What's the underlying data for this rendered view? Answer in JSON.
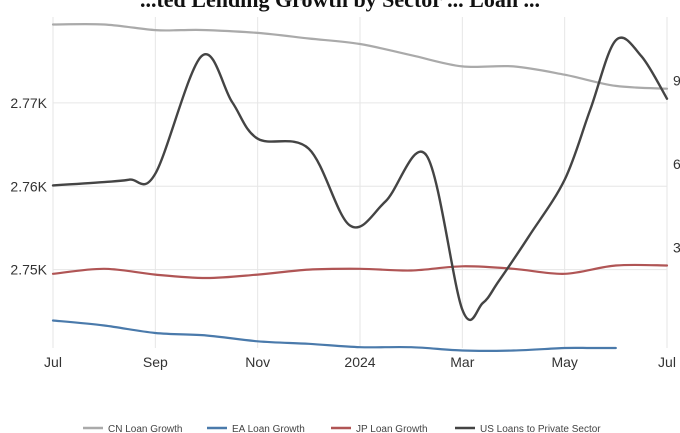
{
  "chart_data": {
    "type": "line",
    "title": "...ted Lending Growth by Sector ... Loan ...",
    "x_ticks": [
      "Jul",
      "Sep",
      "Nov",
      "2024",
      "Mar",
      "May",
      "Jul"
    ],
    "left_ticks": [
      "2.77K",
      "2.76K",
      "2.75K"
    ],
    "right_ticks": [
      "9",
      "6",
      "3"
    ],
    "ylim_left": [
      2.7406,
      2.7803
    ],
    "ylim_right": [
      -0.6,
      11.27
    ],
    "grid": true,
    "legend_position": "bottom",
    "series": [
      {
        "name": "CN Loan Growth",
        "color": "#aaaaaa",
        "axis": "right",
        "x": [
          0,
          1,
          2,
          2.5,
          3,
          4,
          5,
          6,
          7,
          8,
          9,
          10,
          11,
          12
        ],
        "y": [
          11.0,
          11.0,
          10.8,
          10.8,
          10.8,
          10.7,
          10.5,
          10.3,
          9.9,
          9.5,
          9.5,
          9.2,
          8.8,
          8.7
        ]
      },
      {
        "name": "EA Loan Growth",
        "color": "#4a7aab",
        "axis": "left",
        "x": [
          0,
          1,
          2,
          3,
          4,
          5,
          6,
          7,
          8,
          9,
          10,
          10.5,
          11
        ],
        "y": [
          2.7439,
          2.7433,
          2.7424,
          2.7421,
          2.7414,
          2.7411,
          2.7407,
          2.7407,
          2.7403,
          2.7403,
          2.7406,
          2.7406,
          2.7406
        ]
      },
      {
        "name": "JP Loan Growth",
        "color": "#b05555",
        "axis": "left",
        "x": [
          0,
          1,
          2,
          3,
          4,
          5,
          6,
          7,
          8,
          9,
          10,
          11,
          12
        ],
        "y": [
          2.7495,
          2.7501,
          2.7494,
          2.749,
          2.7494,
          2.75,
          2.7501,
          2.7499,
          2.7504,
          2.7501,
          2.7495,
          2.7505,
          2.7505
        ]
      },
      {
        "name": "US Loans to Private Sector",
        "color": "#444444",
        "axis": "left",
        "x": [
          0,
          1,
          1.5,
          2,
          2.9,
          3.5,
          4,
          5,
          5.8,
          6.5,
          7.3,
          8,
          8.4,
          8.7,
          9.3,
          10,
          10.5,
          11,
          11.5,
          12
        ],
        "y": [
          2.7601,
          2.7605,
          2.7608,
          2.7615,
          2.7756,
          2.7701,
          2.7657,
          2.7645,
          2.7553,
          2.7582,
          2.7637,
          2.7452,
          2.746,
          2.7485,
          2.754,
          2.7608,
          2.7692,
          2.7775,
          2.7756,
          2.7705
        ]
      }
    ]
  }
}
